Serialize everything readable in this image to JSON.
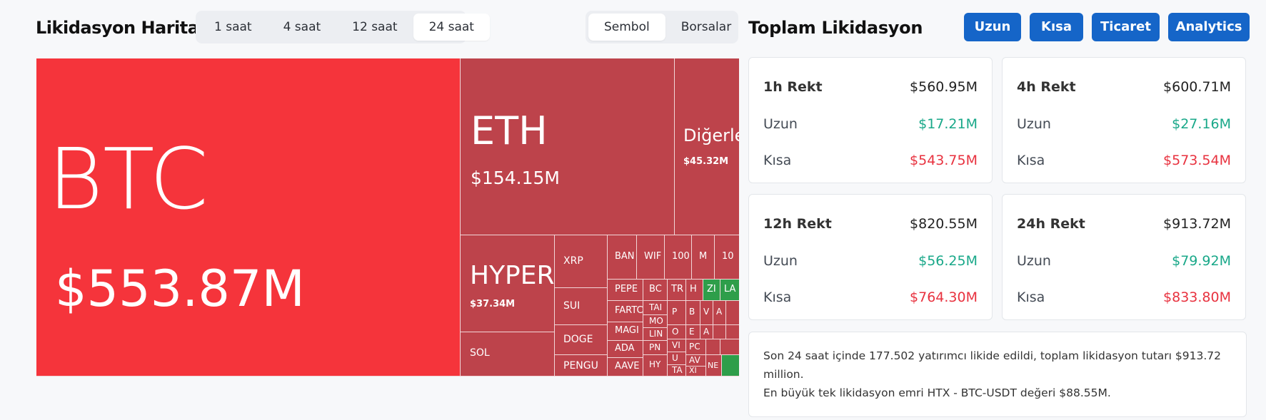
{
  "header": {
    "title": "Likidasyon Haritası",
    "time_options": [
      "1 saat",
      "4 saat",
      "12 saat",
      "24 saat"
    ],
    "time_selected": "24 saat",
    "view_options": [
      "Sembol",
      "Borsalar"
    ],
    "view_selected": "Sembol"
  },
  "treemap": {
    "btc": {
      "symbol": "BTC",
      "value": "$553.87M",
      "color": "#f5343b"
    },
    "eth": {
      "symbol": "ETH",
      "value": "$154.15M"
    },
    "others": {
      "symbol": "Diğerle",
      "value": "$45.32M"
    },
    "hyper": {
      "symbol": "HYPER",
      "value": "$37.34M"
    },
    "small": {
      "xrp": "XRP",
      "sui": "SUI",
      "doge": "DOGE",
      "pengu": "PENGU",
      "sol": "SOL",
      "ban": "BAN",
      "wif": "WIF",
      "hundred1": "100",
      "m": "M",
      "hundred2": "10",
      "pepe": "PEPE",
      "bo": "BC",
      "tr": "TR",
      "h": "H",
      "zl": "ZI",
      "la": "LA",
      "farto": "FARTC",
      "ta1": "TAI",
      "p": "P",
      "b": "B",
      "v": "V",
      "a": "A",
      "magic": "MAGI",
      "mo": "MO",
      "o": "O",
      "e": "E",
      "a2": "A",
      "lin": "LIN",
      "vi": "VI",
      "ada": "ADA",
      "pn": "PN",
      "u": "U",
      "aave": "AAVE",
      "hy": "HY",
      "ta2": "TA",
      "xi": "XI",
      "po": "PC",
      "av": "AV",
      "ne": "NE"
    }
  },
  "right": {
    "title": "Toplam Likidasyon",
    "buttons": [
      "Uzun",
      "Kısa",
      "Ticaret",
      "Analytics"
    ],
    "button_color": "#1565c8",
    "cards": [
      {
        "label": "1h Rekt",
        "total": "$560.95M",
        "long_label": "Uzun",
        "long": "$17.21M",
        "short_label": "Kısa",
        "short": "$543.75M"
      },
      {
        "label": "4h Rekt",
        "total": "$600.71M",
        "long_label": "Uzun",
        "long": "$27.16M",
        "short_label": "Kısa",
        "short": "$573.54M"
      },
      {
        "label": "12h Rekt",
        "total": "$820.55M",
        "long_label": "Uzun",
        "long": "$56.25M",
        "short_label": "Kısa",
        "short": "$764.30M"
      },
      {
        "label": "24h Rekt",
        "total": "$913.72M",
        "long_label": "Uzun",
        "long": "$79.92M",
        "short_label": "Kısa",
        "short": "$833.80M"
      }
    ],
    "summary_line1": "Son 24 saat içinde 177.502 yatırımcı likide edildi, toplam likidasyon tutarı $913.72 million.",
    "summary_line2": "En büyük tek likidasyon emri HTX - BTC-USDT değeri $88.55M."
  },
  "colors": {
    "long": "#19a889",
    "short": "#e8323f",
    "tile_red": "#bd434b",
    "tile_green": "#2e9e4a"
  }
}
